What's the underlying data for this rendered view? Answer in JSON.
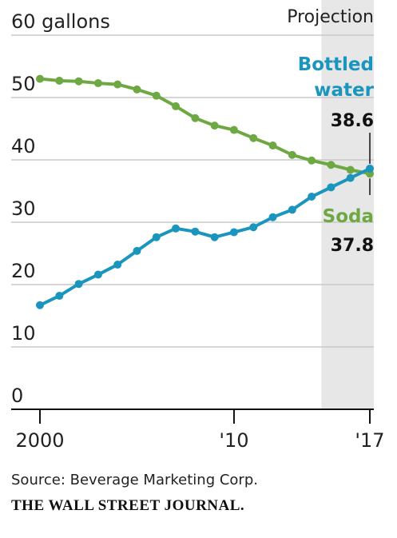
{
  "chart_data": {
    "type": "line",
    "projection_label": "Projection",
    "projection_start_year": 2015,
    "x": [
      2000,
      2001,
      2002,
      2003,
      2004,
      2005,
      2006,
      2007,
      2008,
      2009,
      2010,
      2011,
      2012,
      2013,
      2014,
      2015,
      2016,
      2017
    ],
    "x_ticks": [
      {
        "x": 2000,
        "label": "2000"
      },
      {
        "x": 2010,
        "label": "'10"
      },
      {
        "x": 2017,
        "label": "'17"
      }
    ],
    "y_ticks": [
      {
        "y": 60,
        "label": "60 gallons"
      },
      {
        "y": 50,
        "label": "50"
      },
      {
        "y": 40,
        "label": "40"
      },
      {
        "y": 30,
        "label": "30"
      },
      {
        "y": 20,
        "label": "20"
      },
      {
        "y": 10,
        "label": "10"
      },
      {
        "y": 0,
        "label": "0"
      }
    ],
    "ylim": [
      0,
      60
    ],
    "xlim": [
      2000,
      2017
    ],
    "grid": true,
    "series": [
      {
        "key": "soda",
        "name": "Soda",
        "color": "#6ea843",
        "end_label": "37.8",
        "values": [
          53.0,
          52.7,
          52.6,
          52.3,
          52.1,
          51.3,
          50.3,
          48.6,
          46.7,
          45.5,
          44.8,
          43.5,
          42.3,
          40.8,
          39.9,
          39.2,
          38.4,
          37.8
        ]
      },
      {
        "key": "water",
        "name": "Bottled water",
        "name_lines": [
          "Bottled",
          "water"
        ],
        "color": "#1a95bd",
        "end_label": "38.6",
        "values": [
          16.7,
          18.2,
          20.1,
          21.6,
          23.2,
          25.4,
          27.6,
          29.0,
          28.5,
          27.6,
          28.4,
          29.2,
          30.8,
          32.0,
          34.1,
          35.6,
          37.1,
          38.6
        ]
      }
    ]
  },
  "footer": {
    "source": "Source: Beverage Marketing Corp.",
    "brand": "THE WALL STREET JOURNAL."
  }
}
